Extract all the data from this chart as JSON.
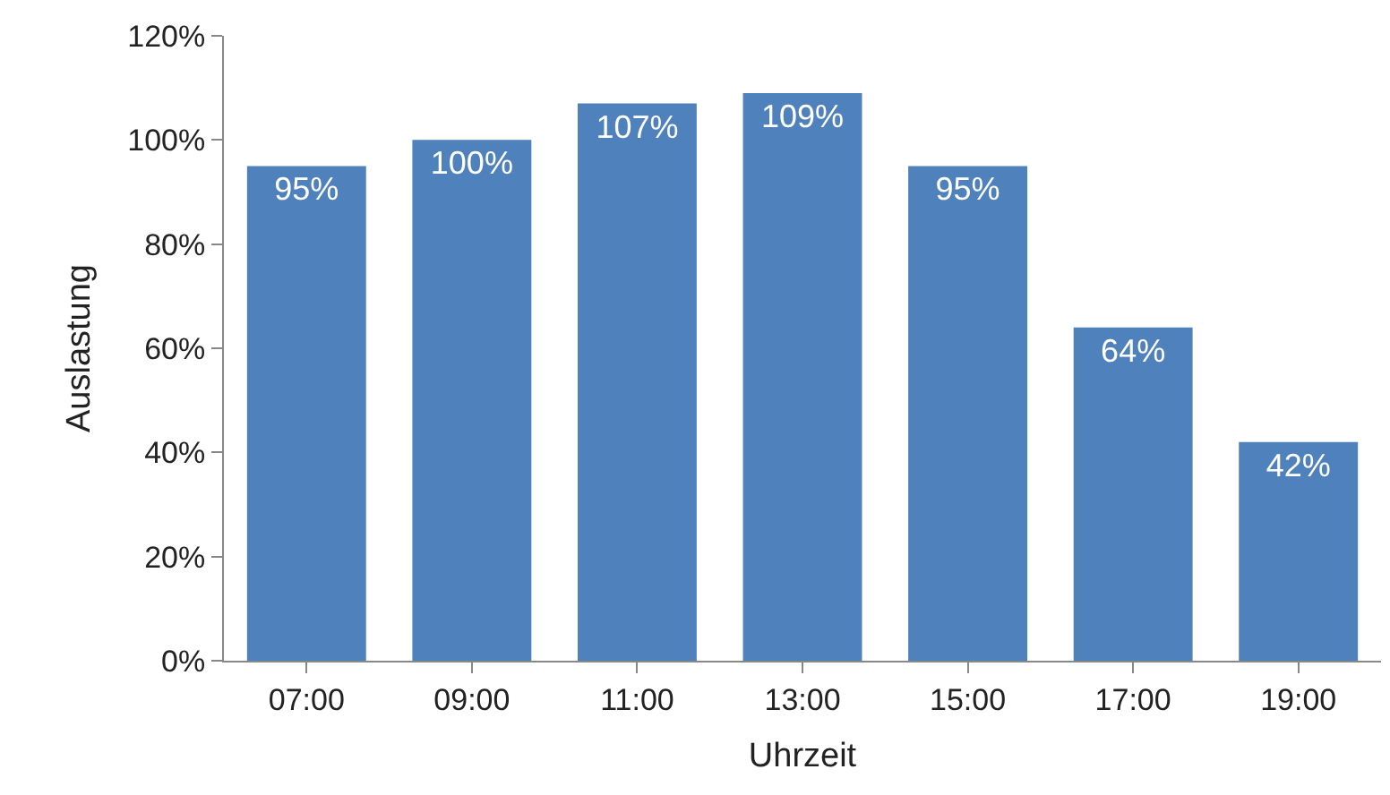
{
  "chart_data": {
    "type": "bar",
    "xlabel": "Uhrzeit",
    "ylabel": "Auslastung",
    "categories": [
      "07:00",
      "09:00",
      "11:00",
      "13:00",
      "15:00",
      "17:00",
      "19:00"
    ],
    "values": [
      95,
      100,
      107,
      109,
      95,
      64,
      42
    ],
    "value_labels": [
      "95%",
      "100%",
      "107%",
      "109%",
      "95%",
      "64%",
      "42%"
    ],
    "color": "#4f81bd",
    "ylim": [
      0,
      120
    ],
    "yticks": [
      {
        "value": 0,
        "label": "0%"
      },
      {
        "value": 20,
        "label": "20%"
      },
      {
        "value": 40,
        "label": "40%"
      },
      {
        "value": 60,
        "label": "60%"
      },
      {
        "value": 80,
        "label": "80%"
      },
      {
        "value": 100,
        "label": "100%"
      },
      {
        "value": 120,
        "label": "120%"
      }
    ],
    "legend": false
  }
}
